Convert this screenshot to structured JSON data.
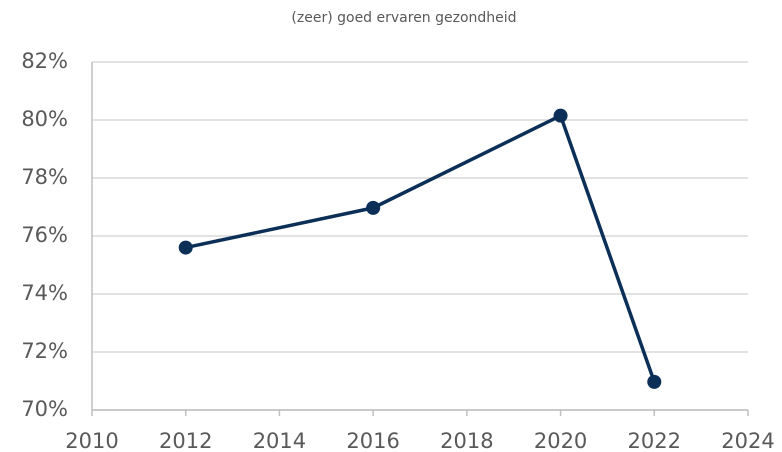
{
  "chart_data": {
    "type": "line",
    "title": "(zeer) goed ervaren gezondheid",
    "x": [
      2012,
      2016,
      2020,
      2022
    ],
    "values": [
      75.6,
      76.97,
      80.15,
      70.97
    ],
    "color": "#0b2f57",
    "xlim": [
      2010,
      2024
    ],
    "xticks": [
      2010,
      2012,
      2014,
      2016,
      2018,
      2020,
      2022,
      2024
    ],
    "ylim": [
      70,
      82
    ],
    "yticks": [
      {
        "value": 70,
        "label": "70%"
      },
      {
        "value": 72,
        "label": "72%"
      },
      {
        "value": 74,
        "label": "74%"
      },
      {
        "value": 76,
        "label": "76%"
      },
      {
        "value": 78,
        "label": "78%"
      },
      {
        "value": 80,
        "label": "80%"
      },
      {
        "value": 82,
        "label": "82%"
      }
    ],
    "grid": true
  }
}
